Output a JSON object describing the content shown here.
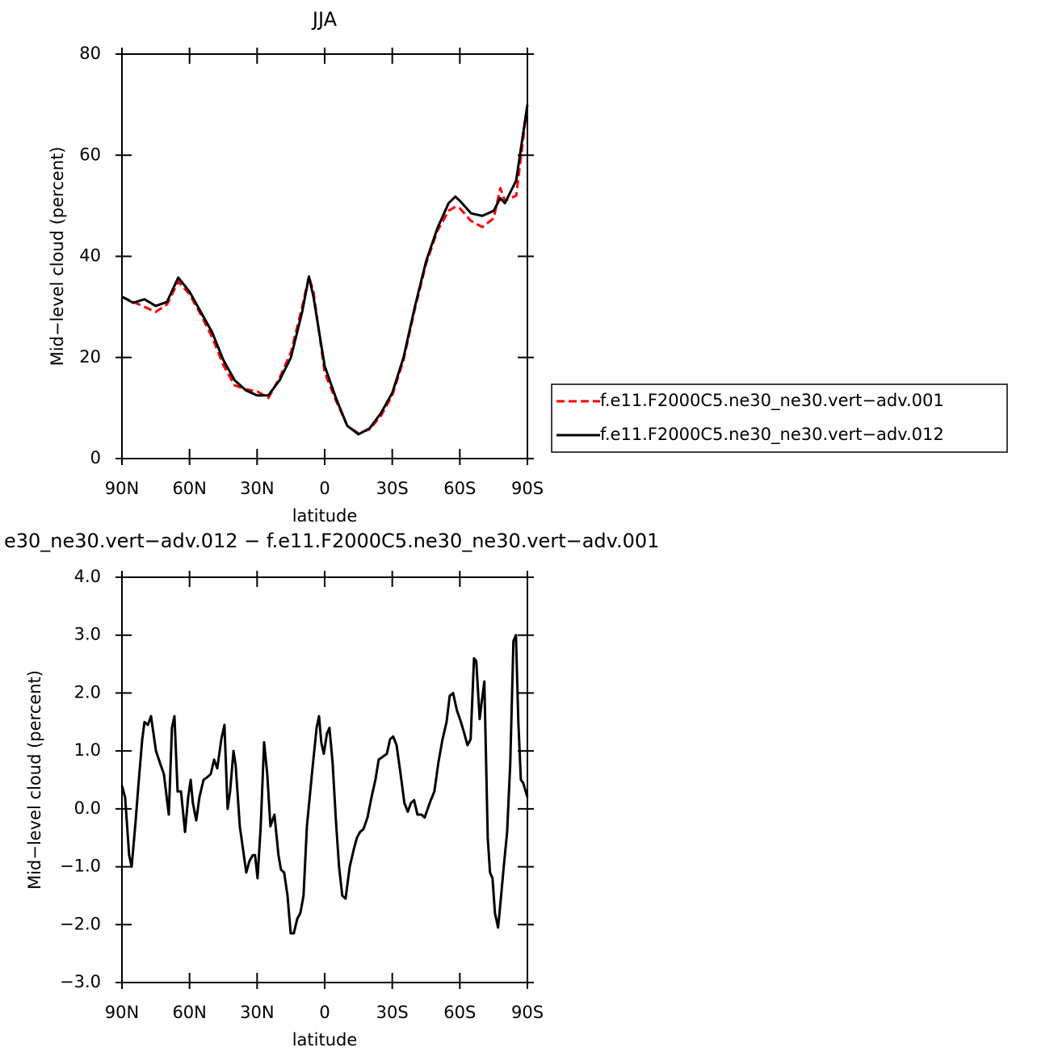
{
  "chart_data": [
    {
      "type": "line",
      "title": "JJA",
      "xlabel": "latitude",
      "ylabel": "Mid−level cloud (percent)",
      "x": [
        90,
        85,
        80,
        75,
        70,
        65,
        60,
        55,
        50,
        45,
        40,
        35,
        30,
        25,
        20,
        15,
        10,
        7,
        5,
        0,
        -5,
        -10,
        -15,
        -20,
        -25,
        -30,
        -35,
        -40,
        -45,
        -50,
        -55,
        -58,
        -60,
        -65,
        -70,
        -75,
        -78,
        -80,
        -85,
        -90
      ],
      "series": [
        {
          "name": "f.e11.F2000C5.ne30_ne30.vert−adv.001",
          "color": "#ff0000",
          "dash": true,
          "values": [
            32,
            31,
            30,
            29,
            30.5,
            35,
            32.5,
            28.5,
            24,
            18.5,
            14.5,
            13.7,
            13.3,
            12,
            16,
            21,
            30,
            36,
            33,
            17,
            11.5,
            6.5,
            5,
            5.8,
            8.5,
            12.5,
            19.5,
            29.5,
            38.5,
            45,
            49,
            49.8,
            49.5,
            47,
            45.8,
            47.5,
            53.5,
            51,
            52,
            70
          ]
        },
        {
          "name": "f.e11.F2000C5.ne30_ne30.vert−adv.012",
          "color": "#000000",
          "dash": false,
          "values": [
            32,
            30.8,
            31.5,
            30.2,
            31,
            35.8,
            33,
            29,
            25,
            19.5,
            15.5,
            13.5,
            12.5,
            12.5,
            15.5,
            20,
            29,
            36,
            32,
            18.3,
            12,
            6.5,
            4.8,
            6,
            9,
            13,
            20,
            30,
            39,
            45.5,
            50.5,
            51.8,
            51,
            48.5,
            48,
            49,
            51.5,
            50.5,
            55,
            70
          ]
        }
      ],
      "xlim": [
        90,
        -90
      ],
      "xticks": [
        {
          "value": 90,
          "label": "90N"
        },
        {
          "value": 60,
          "label": "60N"
        },
        {
          "value": 30,
          "label": "30N"
        },
        0,
        {
          "value": -30,
          "label": "30S"
        },
        {
          "value": -60,
          "label": "60S"
        },
        {
          "value": -90,
          "label": "90S"
        }
      ],
      "ylim": [
        0,
        80
      ],
      "yticks": [
        0,
        20,
        40,
        60,
        80
      ],
      "legend": "right"
    },
    {
      "type": "line",
      "title": "e30_ne30.vert−adv.012 − f.e11.F2000C5.ne30_ne30.vert−adv.001",
      "xlabel": "latitude",
      "ylabel": "Mid−level cloud (percent)",
      "x": [
        90,
        88.6,
        86.8,
        85.7,
        83.9,
        82.5,
        81,
        80,
        78.5,
        77.1,
        74.9,
        73.2,
        71.4,
        69.2,
        67.8,
        66.7,
        65.3,
        63.8,
        62,
        60.6,
        59.5,
        58.5,
        57,
        55.6,
        53.8,
        52,
        50.6,
        49.1,
        47.7,
        45.9,
        44.5,
        43.1,
        42,
        40.5,
        39.5,
        37.7,
        34.8,
        33.4,
        31.9,
        30.9,
        29.8,
        28.4,
        26.9,
        25.5,
        24.1,
        22.3,
        20.5,
        19.4,
        18,
        16.5,
        15.1,
        13.7,
        12.2,
        10.8,
        9.4,
        7.9,
        5.4,
        3.6,
        2.5,
        1.5,
        0.4,
        -1,
        -2.1,
        -3.5,
        -5,
        -6.4,
        -7.8,
        -9.3,
        -11.1,
        -12.9,
        -14.3,
        -15.7,
        -17.2,
        -19,
        -20.8,
        -22.5,
        -24,
        -25.8,
        -27.6,
        -29,
        -30.4,
        -31.9,
        -33.7,
        -35.4,
        -36.9,
        -38.3,
        -39.7,
        -41.2,
        -43,
        -44.4,
        -46.6,
        -48.7,
        -50.5,
        -52.3,
        -54.1,
        -55.5,
        -57,
        -58.7,
        -60.5,
        -62,
        -63.4,
        -64.8,
        -66.3,
        -67.3,
        -68.8,
        -69.9,
        -70.9,
        -72.4,
        -73.4,
        -74.5,
        -75.6,
        -77,
        -78.1,
        -79.5,
        -81,
        -82.4,
        -83.8,
        -84.9,
        -86,
        -87.1,
        -88.1,
        -90
      ],
      "values": [
        0.4,
        0.2,
        -0.8,
        -1.0,
        -0.2,
        0.5,
        1.2,
        1.5,
        1.45,
        1.6,
        1.0,
        0.8,
        0.6,
        -0.1,
        1.4,
        1.6,
        0.3,
        0.3,
        -0.4,
        0.2,
        0.5,
        0.1,
        -0.2,
        0.2,
        0.5,
        0.55,
        0.6,
        0.85,
        0.7,
        1.2,
        1.45,
        0.0,
        0.3,
        1.0,
        0.75,
        -0.3,
        -1.1,
        -0.9,
        -0.8,
        -0.8,
        -1.2,
        -0.3,
        1.15,
        0.6,
        -0.3,
        -0.1,
        -0.8,
        -1.05,
        -1.1,
        -1.5,
        -2.15,
        -2.15,
        -1.9,
        -1.8,
        -1.5,
        -0.3,
        0.7,
        1.4,
        1.6,
        1.15,
        0.95,
        1.3,
        1.4,
        0.8,
        -0.2,
        -1.0,
        -1.5,
        -1.55,
        -1.0,
        -0.7,
        -0.5,
        -0.4,
        -0.35,
        -0.15,
        0.2,
        0.5,
        0.85,
        0.9,
        0.95,
        1.2,
        1.25,
        1.1,
        0.6,
        0.1,
        -0.05,
        0.1,
        0.15,
        -0.1,
        -0.1,
        -0.15,
        0.1,
        0.3,
        0.8,
        1.2,
        1.5,
        1.95,
        2.0,
        1.7,
        1.5,
        1.3,
        1.1,
        1.2,
        2.6,
        2.55,
        1.55,
        1.9,
        2.2,
        -0.5,
        -1.1,
        -1.2,
        -1.8,
        -2.05,
        -1.6,
        -1.0,
        -0.4,
        0.8,
        2.9,
        3.0,
        1.5,
        0.5,
        0.45,
        0.2
      ],
      "color": "#000000",
      "xlim": [
        90,
        -90
      ],
      "xticks": [
        {
          "value": 90,
          "label": "90N"
        },
        {
          "value": 60,
          "label": "60N"
        },
        {
          "value": 30,
          "label": "30N"
        },
        0,
        {
          "value": -30,
          "label": "30S"
        },
        {
          "value": -60,
          "label": "60S"
        },
        {
          "value": -90,
          "label": "90S"
        }
      ],
      "ylim": [
        -3,
        4
      ],
      "yticks": [
        {
          "value": -3,
          "label": "−3.0"
        },
        {
          "value": -2,
          "label": "−2.0"
        },
        {
          "value": -1,
          "label": "−1.0"
        },
        {
          "value": 0,
          "label": "0.0"
        },
        {
          "value": 1,
          "label": "1.0"
        },
        {
          "value": 2,
          "label": "2.0"
        },
        {
          "value": 3,
          "label": "3.0"
        },
        {
          "value": 4,
          "label": "4.0"
        }
      ]
    }
  ]
}
